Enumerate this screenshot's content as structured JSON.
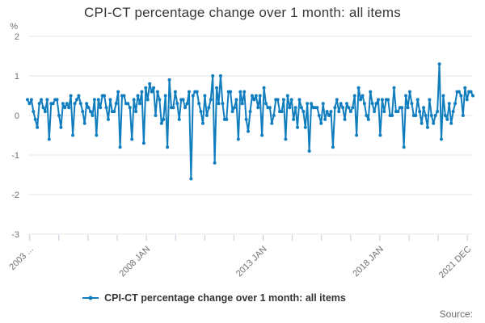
{
  "title": "CPI-CT percentage change over 1 month: all items",
  "legend": {
    "label": "CPI-CT percentage change over 1 month: all items"
  },
  "source_label": "Source:",
  "y_axis": {
    "unit_label": "%",
    "ticks": [
      2,
      1,
      0,
      -1,
      -2,
      -3
    ]
  },
  "x_axis": {
    "tick_count": 16,
    "labels": [
      "2003 ...",
      "2008 JAN",
      "2013 JAN",
      "2018 JAN",
      "2021 DEC"
    ],
    "labeled_tick_indices": [
      0,
      4,
      8,
      12,
      15
    ]
  },
  "colors": {
    "line": "#107dbe",
    "grid": "#e4e4e4",
    "tick": "#c4c8dd",
    "axis_text": "#707070",
    "title_text": "#383838",
    "legend_text": "#333333"
  },
  "chart_data": {
    "type": "line",
    "title": "CPI-CT percentage change over 1 month: all items",
    "ylabel": "%",
    "ylim": [
      -3,
      2
    ],
    "x_start": "2003 FEB",
    "x_end": "2021 DEC",
    "x_frequency": "monthly",
    "legend_position": "bottom",
    "grid": "horizontal",
    "marker": "dot",
    "values": [
      0.4,
      0.3,
      0.4,
      0.1,
      -0.1,
      -0.3,
      0.3,
      0.4,
      0.2,
      0.1,
      0.4,
      -0.6,
      0.3,
      0.3,
      0.4,
      0.4,
      0.0,
      -0.3,
      0.3,
      0.2,
      0.3,
      0.2,
      0.5,
      -0.5,
      0.3,
      0.4,
      0.5,
      0.3,
      0.1,
      -0.2,
      0.3,
      0.2,
      0.1,
      0.0,
      0.4,
      -0.5,
      0.4,
      0.2,
      0.5,
      0.5,
      0.2,
      -0.1,
      0.4,
      0.1,
      0.1,
      0.3,
      0.6,
      -0.8,
      0.5,
      0.5,
      0.3,
      0.3,
      0.2,
      -0.6,
      0.4,
      0.1,
      0.5,
      0.3,
      0.6,
      -0.7,
      0.7,
      0.4,
      0.8,
      0.6,
      0.7,
      0.0,
      0.6,
      0.4,
      -0.2,
      -0.1,
      0.5,
      -0.8,
      0.9,
      0.2,
      0.2,
      0.6,
      0.3,
      -0.1,
      0.4,
      0.4,
      0.2,
      0.3,
      0.6,
      -1.6,
      0.5,
      0.6,
      0.6,
      0.3,
      0.1,
      -0.2,
      0.5,
      0.0,
      0.2,
      0.4,
      1.0,
      -1.2,
      0.7,
      0.3,
      1.0,
      0.3,
      -0.1,
      -0.1,
      0.6,
      0.6,
      0.1,
      0.2,
      0.4,
      -0.6,
      0.6,
      0.3,
      0.6,
      -0.1,
      -0.4,
      0.1,
      0.5,
      0.4,
      0.5,
      0.2,
      0.5,
      -0.5,
      0.7,
      0.3,
      0.2,
      0.2,
      -0.2,
      0.0,
      0.4,
      0.4,
      0.1,
      0.1,
      0.4,
      -0.6,
      0.5,
      0.2,
      0.4,
      -0.1,
      0.2,
      -0.3,
      0.4,
      0.2,
      0.1,
      -0.3,
      0.3,
      -0.9,
      0.3,
      0.2,
      0.2,
      0.2,
      0.0,
      -0.2,
      0.3,
      -0.1,
      0.1,
      0.0,
      0.1,
      -0.8,
      0.2,
      0.4,
      0.1,
      0.3,
      0.2,
      -0.1,
      0.3,
      0.2,
      0.1,
      0.2,
      0.5,
      -0.5,
      0.7,
      0.4,
      0.5,
      0.3,
      0.0,
      -0.1,
      0.6,
      0.3,
      0.1,
      0.3,
      0.4,
      -0.5,
      0.4,
      0.1,
      0.4,
      0.4,
      0.0,
      0.0,
      0.7,
      0.1,
      0.1,
      0.2,
      0.2,
      -0.8,
      0.5,
      0.2,
      0.6,
      0.3,
      0.0,
      0.0,
      0.4,
      0.1,
      -0.2,
      0.2,
      0.0,
      -0.3,
      0.4,
      0.0,
      -0.2,
      0.0,
      0.1,
      1.3,
      -0.6,
      0.5,
      0.0,
      -0.1,
      0.3,
      -0.2,
      0.1,
      0.3,
      0.6,
      0.6,
      0.5,
      0.0,
      0.7,
      0.4,
      0.6,
      0.6,
      0.5
    ]
  }
}
